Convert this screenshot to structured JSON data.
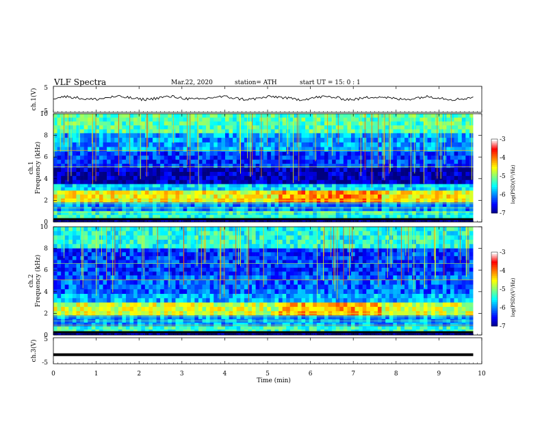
{
  "header": {
    "title": "VLF  Spectra",
    "date": "Mar.22, 2020",
    "station": "station= ATH",
    "start": "start  UT  =    15: 0   : 1"
  },
  "chart_data": {
    "type": "heatmap",
    "x_axis": {
      "label": "Time  (min)",
      "lim": [
        0,
        10
      ],
      "ticks": [
        "0",
        "1",
        "2",
        "3",
        "4",
        "5",
        "6",
        "7",
        "8",
        "9",
        "10"
      ]
    },
    "panels": [
      {
        "id": "ch1_waveform",
        "type": "line",
        "ylabel": "ch.1(V)",
        "ylim": [
          -5,
          5
        ],
        "yticks": [
          "5",
          "-5"
        ],
        "baseline": 0.5,
        "data_end_min": 9.8
      },
      {
        "id": "ch1_spectrogram",
        "type": "heatmap",
        "ylabel": "ch.1\nFrequency  (kHz)",
        "ylabel_lines": [
          "ch.1",
          "Frequency  (kHz)"
        ],
        "ylim": [
          0,
          10
        ],
        "yticks": [
          "0",
          "2",
          "4",
          "6",
          "8",
          "10"
        ],
        "data_end_min": 9.8,
        "bands": [
          {
            "fmin": 8.2,
            "fmax": 10.0,
            "level": 0.45
          },
          {
            "fmin": 6.5,
            "fmax": 8.2,
            "level": 0.28
          },
          {
            "fmin": 5.0,
            "fmax": 6.5,
            "level": 0.18
          },
          {
            "fmin": 3.5,
            "fmax": 5.0,
            "level": 0.05
          },
          {
            "fmin": 2.9,
            "fmax": 3.5,
            "level": 0.35
          },
          {
            "fmin": 1.8,
            "fmax": 2.9,
            "level": 0.62
          },
          {
            "fmin": 1.0,
            "fmax": 1.8,
            "level": 0.25
          },
          {
            "fmin": 0.3,
            "fmax": 1.0,
            "level": 0.4
          },
          {
            "fmin": 0.0,
            "fmax": 0.3,
            "level": 0.02
          }
        ],
        "colorbar": {
          "label": "log(PSD)(V²/Hz)",
          "ticks": [
            "-3",
            "-4",
            "-5",
            "-6",
            "-7"
          ],
          "range": [
            -7,
            -3
          ]
        }
      },
      {
        "id": "ch2_spectrogram",
        "type": "heatmap",
        "ylabel_lines": [
          "ch.2",
          "Frequency  (kHz)"
        ],
        "ylim": [
          0,
          10
        ],
        "yticks": [
          "0",
          "2",
          "4",
          "6",
          "8",
          "10"
        ],
        "data_end_min": 9.8,
        "bands": [
          {
            "fmin": 8.0,
            "fmax": 10.0,
            "level": 0.4
          },
          {
            "fmin": 5.5,
            "fmax": 8.0,
            "level": 0.18
          },
          {
            "fmin": 3.8,
            "fmax": 5.5,
            "level": 0.22
          },
          {
            "fmin": 3.0,
            "fmax": 3.8,
            "level": 0.3
          },
          {
            "fmin": 1.8,
            "fmax": 3.0,
            "level": 0.58
          },
          {
            "fmin": 0.8,
            "fmax": 1.8,
            "level": 0.28
          },
          {
            "fmin": 0.2,
            "fmax": 0.8,
            "level": 0.42
          },
          {
            "fmin": 0.0,
            "fmax": 0.2,
            "level": 0.02
          }
        ],
        "colorbar": {
          "label": "log(PSD)(V²/Hz)",
          "ticks": [
            "-3",
            "-4",
            "-5",
            "-6",
            "-7"
          ],
          "range": [
            -7,
            -3
          ]
        }
      },
      {
        "id": "ch3_waveform",
        "type": "line",
        "ylabel": "ch.3(V)",
        "ylim": [
          -5,
          5
        ],
        "yticks": [
          "5",
          "-5"
        ],
        "constant_value": -1.5,
        "data_end_min": 9.8
      }
    ],
    "colormap": [
      "#000080",
      "#0000ff",
      "#0080ff",
      "#00ffff",
      "#80ff80",
      "#ffff00",
      "#ff8000",
      "#ff0000",
      "#ffffff"
    ]
  }
}
